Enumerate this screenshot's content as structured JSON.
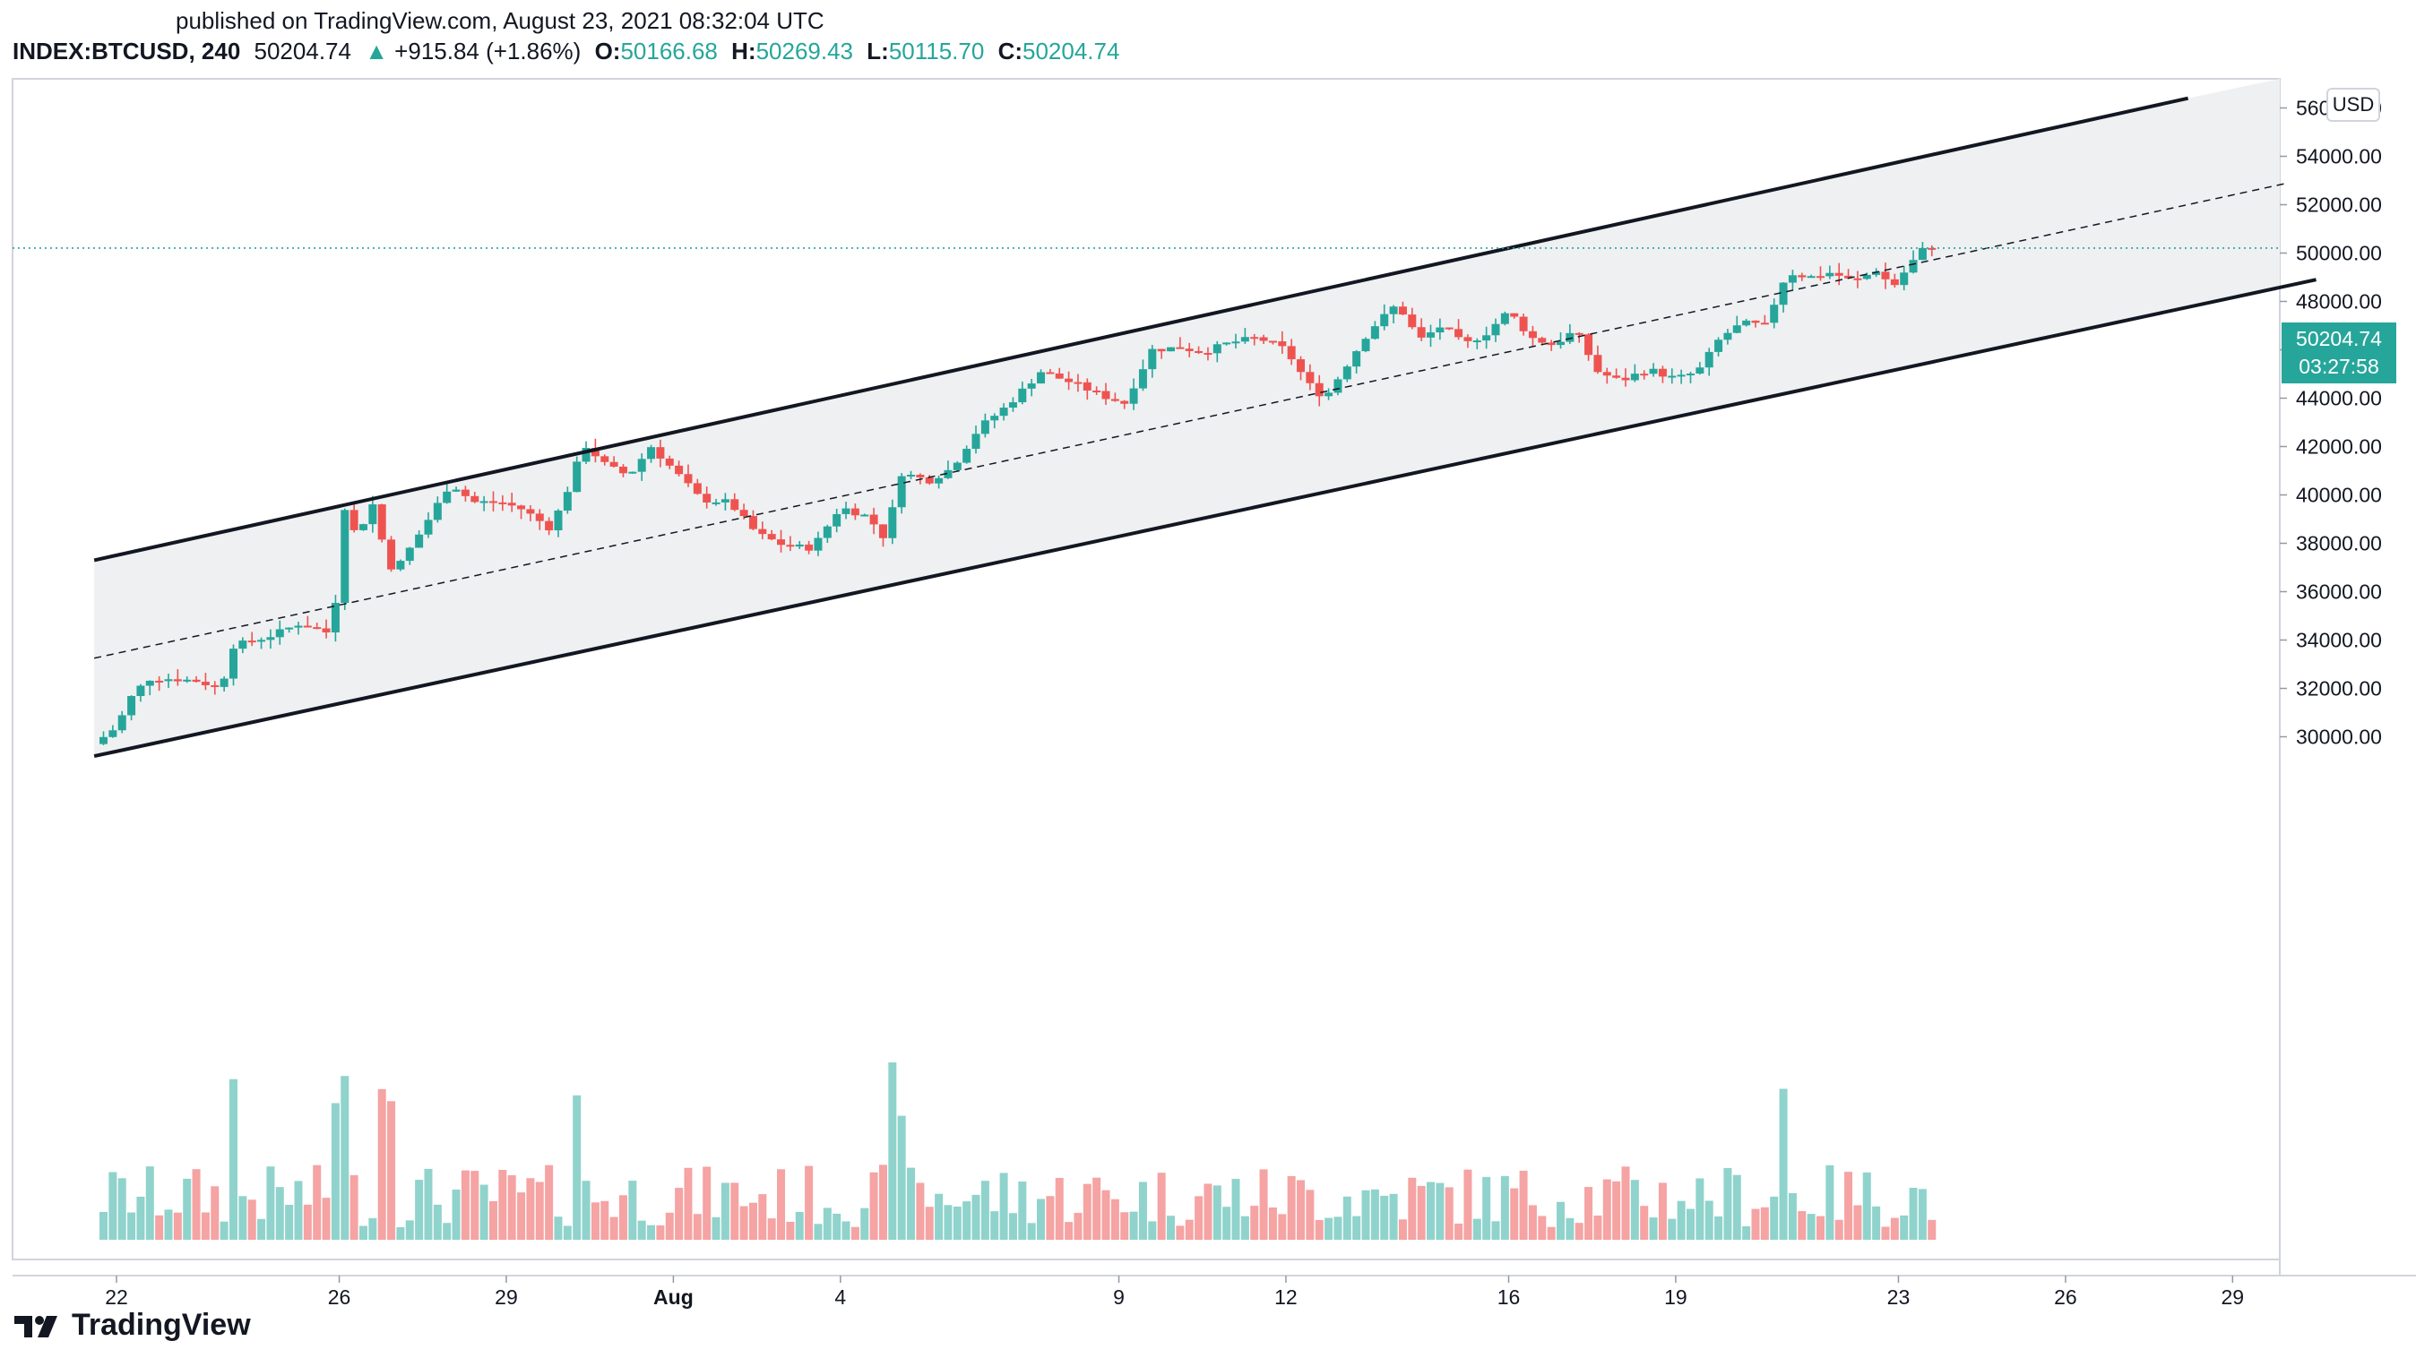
{
  "header": {
    "published": "published on TradingView.com, August 23, 2021 08:32:04 UTC",
    "symbol": "INDEX:BTCUSD, 240",
    "last": "50204.74",
    "change_arrow": "▲",
    "change": "+915.84 (+1.86%)",
    "open_label": "O:",
    "open": "50166.68",
    "high_label": "H:",
    "high": "50269.43",
    "low_label": "L:",
    "low": "50115.70",
    "close_label": "C:",
    "close": "50204.74"
  },
  "price_scale": {
    "currency": "USD",
    "last_price": "50204.74",
    "countdown": "03:27:58"
  },
  "brand": {
    "name": "TradingView",
    "logo": "tradingview-logo-icon"
  },
  "colors": {
    "up": "#26a69a",
    "down": "#ef5350",
    "up_volume": "#8fd3cc",
    "down_volume": "#f5a3a3",
    "channel_fill": "#eef0f2"
  },
  "chart_data": {
    "type": "candlestick",
    "interval": "240",
    "ylim": [
      28800,
      56500
    ],
    "y_ticks": [
      "56000.00",
      "54000.00",
      "52000.00",
      "50000.00",
      "48000.00",
      "46000.00",
      "44000.00",
      "42000.00",
      "40000.00",
      "38000.00",
      "36000.00",
      "34000.00",
      "32000.00",
      "30000.00"
    ],
    "x_ticks": [
      {
        "label": "22",
        "day": 1
      },
      {
        "label": "26",
        "day": 5
      },
      {
        "label": "29",
        "day": 8
      },
      {
        "label": "Aug",
        "day": 11,
        "bold": true
      },
      {
        "label": "4",
        "day": 14
      },
      {
        "label": "9",
        "day": 19
      },
      {
        "label": "12",
        "day": 22
      },
      {
        "label": "16",
        "day": 26
      },
      {
        "label": "19",
        "day": 29
      },
      {
        "label": "23",
        "day": 33
      },
      {
        "label": "26",
        "day": 36
      },
      {
        "label": "29",
        "day": 39
      }
    ],
    "day_start": 0.6,
    "current_price": 50204.74,
    "close_path": [
      [
        0.6,
        29700
      ],
      [
        1.0,
        30400
      ],
      [
        1.3,
        31800
      ],
      [
        1.6,
        32400
      ],
      [
        2.0,
        32400
      ],
      [
        2.5,
        32300
      ],
      [
        2.9,
        31900
      ],
      [
        3.0,
        33700
      ],
      [
        3.5,
        34000
      ],
      [
        3.8,
        34200
      ],
      [
        4.3,
        34700
      ],
      [
        4.8,
        34300
      ],
      [
        4.95,
        35800
      ],
      [
        5.1,
        39500
      ],
      [
        5.3,
        38300
      ],
      [
        5.6,
        39600
      ],
      [
        5.9,
        37000
      ],
      [
        6.1,
        37200
      ],
      [
        6.5,
        38600
      ],
      [
        7.0,
        40500
      ],
      [
        7.4,
        39700
      ],
      [
        7.9,
        39700
      ],
      [
        8.3,
        39400
      ],
      [
        8.8,
        38600
      ],
      [
        9.1,
        40200
      ],
      [
        9.4,
        42100
      ],
      [
        9.8,
        41200
      ],
      [
        10.2,
        40800
      ],
      [
        10.6,
        42000
      ],
      [
        11.1,
        40800
      ],
      [
        11.5,
        39800
      ],
      [
        12.0,
        39700
      ],
      [
        12.5,
        38400
      ],
      [
        13.0,
        37900
      ],
      [
        13.5,
        37800
      ],
      [
        14.0,
        39500
      ],
      [
        14.5,
        39100
      ],
      [
        14.8,
        38200
      ],
      [
        15.1,
        40900
      ],
      [
        15.6,
        40600
      ],
      [
        16.0,
        41100
      ],
      [
        16.5,
        42800
      ],
      [
        17.0,
        43700
      ],
      [
        17.6,
        45100
      ],
      [
        18.2,
        44600
      ],
      [
        18.7,
        44100
      ],
      [
        19.1,
        43800
      ],
      [
        19.6,
        46000
      ],
      [
        20.1,
        46100
      ],
      [
        20.5,
        45900
      ],
      [
        21.0,
        46300
      ],
      [
        21.5,
        46500
      ],
      [
        22.0,
        46000
      ],
      [
        22.4,
        44600
      ],
      [
        22.7,
        44000
      ],
      [
        23.1,
        45400
      ],
      [
        23.5,
        46800
      ],
      [
        24.0,
        47900
      ],
      [
        24.4,
        46400
      ],
      [
        24.8,
        47000
      ],
      [
        25.2,
        46200
      ],
      [
        25.6,
        46700
      ],
      [
        26.0,
        47600
      ],
      [
        26.4,
        46500
      ],
      [
        26.8,
        46200
      ],
      [
        27.2,
        46800
      ],
      [
        27.6,
        45100
      ],
      [
        28.0,
        44700
      ],
      [
        28.5,
        45200
      ],
      [
        29.0,
        44800
      ],
      [
        29.4,
        45100
      ],
      [
        29.8,
        46500
      ],
      [
        30.2,
        47100
      ],
      [
        30.6,
        47000
      ],
      [
        31.0,
        49200
      ],
      [
        31.4,
        49000
      ],
      [
        31.8,
        49200
      ],
      [
        32.2,
        48800
      ],
      [
        32.6,
        49300
      ],
      [
        32.9,
        48600
      ],
      [
        33.2,
        49500
      ],
      [
        33.5,
        50300
      ],
      [
        33.7,
        50204.74
      ]
    ],
    "annotations": [
      {
        "type": "channel_line",
        "name": "upper-channel",
        "points": [
          [
            0.6,
            37300
          ],
          [
            38.2,
            56400
          ]
        ]
      },
      {
        "type": "channel_line",
        "name": "lower-channel",
        "points": [
          [
            0.6,
            29200
          ],
          [
            40.5,
            48900
          ]
        ]
      },
      {
        "type": "median_line",
        "name": "channel-median",
        "points": [
          [
            0.6,
            33250
          ],
          [
            40,
            52900
          ]
        ]
      }
    ]
  }
}
